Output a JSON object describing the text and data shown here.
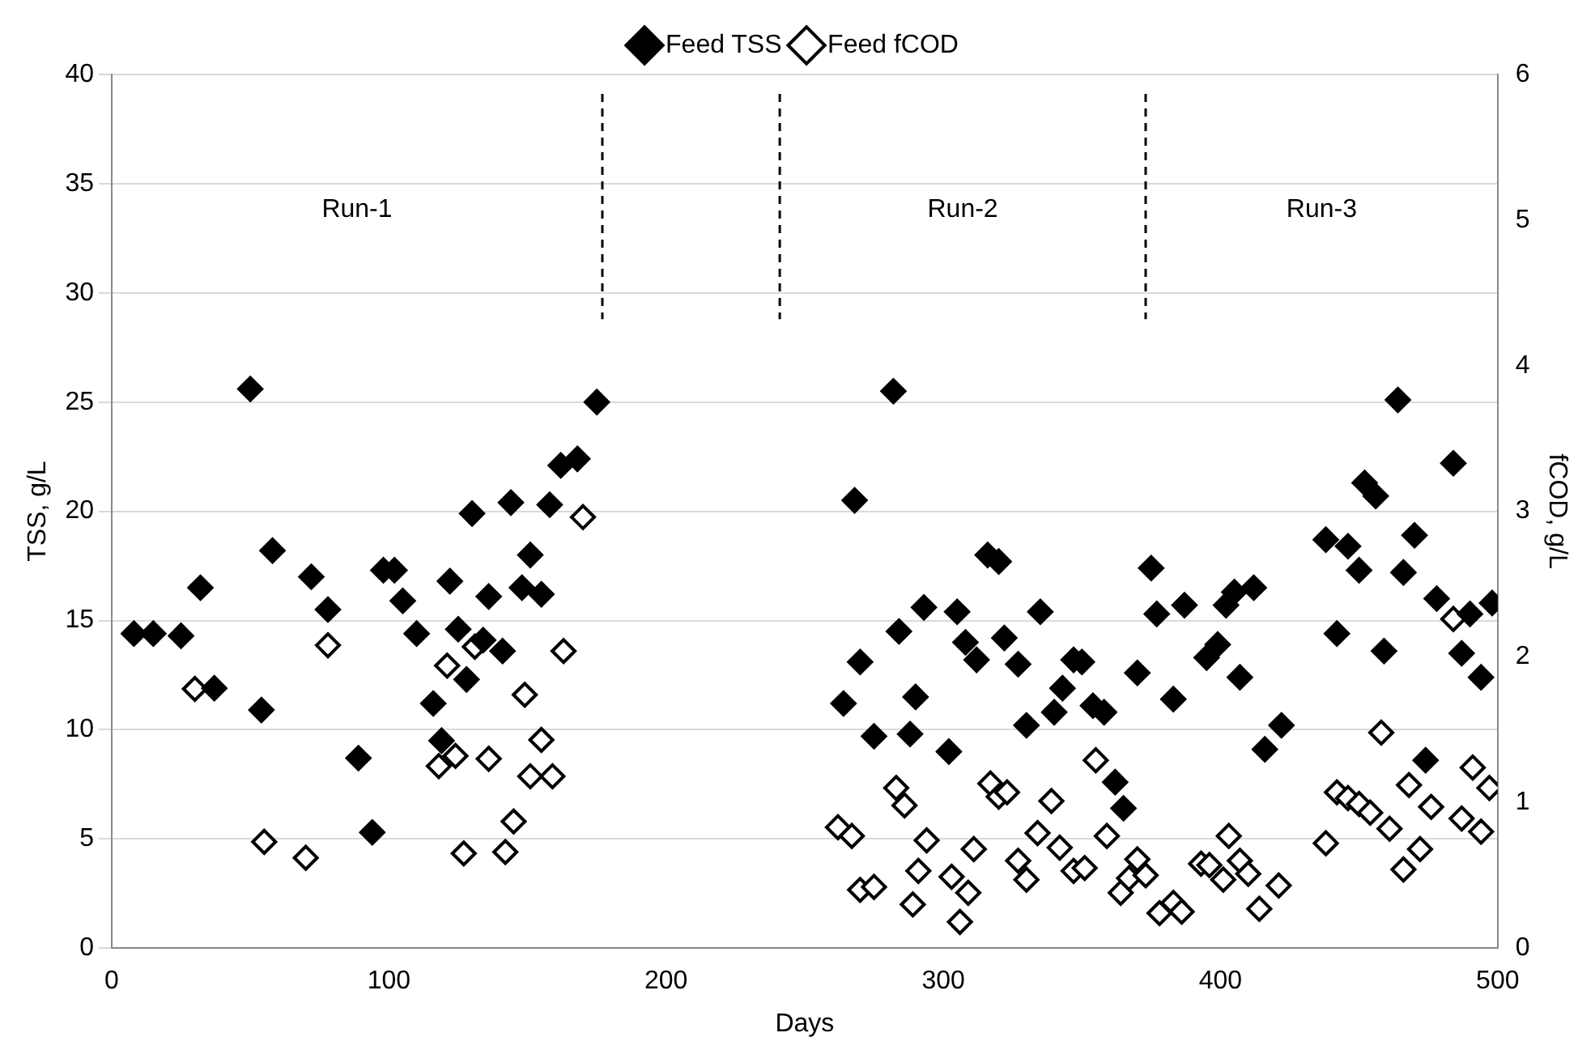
{
  "chart_data": {
    "type": "scatter",
    "xlabel": "Days",
    "ylabel": "TSS, g/L",
    "y2label": "fCOD, g/L",
    "xlim": [
      0,
      500
    ],
    "xticks": [
      0,
      100,
      200,
      300,
      400,
      500
    ],
    "ylim": [
      0,
      40
    ],
    "yticks": [
      0,
      5,
      10,
      15,
      20,
      25,
      30,
      35,
      40
    ],
    "y2lim": [
      0,
      6
    ],
    "y2ticks": [
      0,
      1,
      2,
      3,
      4,
      5,
      6
    ],
    "grid": "y",
    "legend": "top",
    "marker": "diamond",
    "ref_lines": [
      {
        "axis": "x",
        "value": 177,
        "line_style": "dashed",
        "color": "#000000"
      },
      {
        "axis": "x",
        "value": 241,
        "line_style": "dashed",
        "color": "#000000"
      },
      {
        "axis": "x",
        "value": 373,
        "line_style": "dashed",
        "color": "#000000"
      }
    ],
    "annotations": [
      "Run-1",
      "Run-2",
      "Run-3"
    ],
    "series": [
      {
        "name": "Feed TSS",
        "color": "#000000",
        "x": [
          8,
          15,
          25,
          32,
          37,
          50,
          54,
          58,
          72,
          78,
          89,
          94,
          98,
          102,
          105,
          110,
          116,
          119,
          122,
          125,
          128,
          130,
          134,
          136,
          141,
          144,
          148,
          151,
          155,
          158,
          162,
          168,
          175,
          264,
          268,
          270,
          275,
          282,
          284,
          288,
          290,
          293,
          302,
          305,
          308,
          312,
          316,
          320,
          322,
          327,
          330,
          335,
          340,
          343,
          347,
          350,
          354,
          358,
          362,
          365,
          370,
          375,
          377,
          383,
          387,
          395,
          399,
          402,
          405,
          407,
          412,
          416,
          422,
          438,
          442,
          446,
          450,
          452,
          456,
          459,
          464,
          466,
          470,
          474,
          478,
          484,
          487,
          490,
          494,
          498
        ],
        "values": [
          14.4,
          14.4,
          14.3,
          16.5,
          11.9,
          25.6,
          10.9,
          18.2,
          17.0,
          15.5,
          8.7,
          5.3,
          17.3,
          17.3,
          15.9,
          14.4,
          11.2,
          9.5,
          16.8,
          14.6,
          12.3,
          19.9,
          14.1,
          16.1,
          13.6,
          20.4,
          16.5,
          18.0,
          16.2,
          20.3,
          22.1,
          22.4,
          25.0,
          11.2,
          20.5,
          13.1,
          9.7,
          25.5,
          14.5,
          9.8,
          11.5,
          15.6,
          9.0,
          15.4,
          14.0,
          13.2,
          18.0,
          17.7,
          14.2,
          13.0,
          10.2,
          15.4,
          10.8,
          11.9,
          13.2,
          13.1,
          11.1,
          10.8,
          7.6,
          6.4,
          12.6,
          17.4,
          15.3,
          11.4,
          15.7,
          13.3,
          13.9,
          15.7,
          16.3,
          12.4,
          16.5,
          9.1,
          10.2,
          18.7,
          14.4,
          18.4,
          17.3,
          21.3,
          20.7,
          13.6,
          25.1,
          17.2,
          18.9,
          8.6,
          16.0,
          22.2,
          13.5,
          15.3,
          12.4,
          15.8
        ]
      },
      {
        "name": "Feed fCOD",
        "color": "#000000",
        "axis": "y2",
        "x": [
          30,
          55,
          70,
          78,
          118,
          121,
          124,
          127,
          131,
          136,
          142,
          145,
          149,
          151,
          155,
          159,
          163,
          170,
          262,
          267,
          270,
          275,
          283,
          286,
          289,
          291,
          294,
          303,
          306,
          309,
          311,
          317,
          320,
          323,
          327,
          330,
          334,
          339,
          342,
          347,
          351,
          355,
          359,
          364,
          367,
          370,
          373,
          378,
          383,
          386,
          393,
          396,
          401,
          403,
          407,
          410,
          414,
          421,
          438,
          442,
          446,
          450,
          454,
          458,
          461,
          466,
          468,
          472,
          476,
          484,
          487,
          491,
          494,
          497
        ],
        "values": [
          1.78,
          0.73,
          0.62,
          2.08,
          1.25,
          1.94,
          1.32,
          0.65,
          2.07,
          1.3,
          0.66,
          0.87,
          1.74,
          1.18,
          1.43,
          1.18,
          2.04,
          2.96,
          0.83,
          0.77,
          0.4,
          0.42,
          1.1,
          0.98,
          0.3,
          0.53,
          0.74,
          0.49,
          0.18,
          0.38,
          0.68,
          1.13,
          1.04,
          1.07,
          0.6,
          0.47,
          0.79,
          1.01,
          0.69,
          0.53,
          0.55,
          1.29,
          0.77,
          0.38,
          0.48,
          0.61,
          0.5,
          0.24,
          0.31,
          0.25,
          0.58,
          0.57,
          0.47,
          0.77,
          0.6,
          0.51,
          0.27,
          0.43,
          0.72,
          1.07,
          1.03,
          0.99,
          0.93,
          1.48,
          0.82,
          0.54,
          1.12,
          0.68,
          0.97,
          2.26,
          0.89,
          1.24,
          0.8,
          1.1
        ]
      }
    ]
  }
}
